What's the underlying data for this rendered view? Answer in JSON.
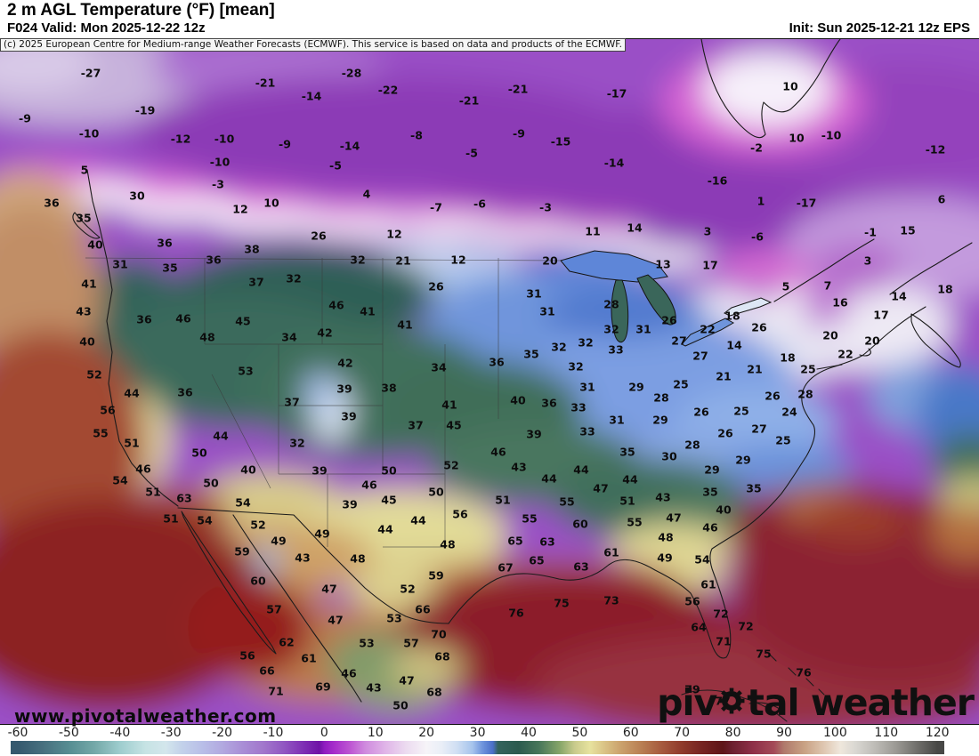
{
  "header": {
    "title": "2 m AGL Temperature (°F) [mean]",
    "valid": "F024 Valid: Mon 2025-12-22 12z",
    "init": "Init: Sun 2025-12-21 12z EPS"
  },
  "copyright": "(c) 2025 European Centre for Medium-range Weather Forecasts (ECMWF). This service is based on data and products of the ECMWF.",
  "watermark": "www.pivotalweather.com",
  "logo": {
    "part1": "piv",
    "part2": "tal weather",
    "gear_icon": "gear"
  },
  "colorbar": {
    "min": -60,
    "max": 120,
    "ticks": [
      -60,
      -50,
      -40,
      -30,
      -20,
      -10,
      0,
      10,
      20,
      30,
      40,
      50,
      60,
      70,
      80,
      90,
      100,
      110,
      120
    ],
    "stops": [
      [
        -60,
        "#35596e"
      ],
      [
        -55,
        "#47707f"
      ],
      [
        -50,
        "#568d92"
      ],
      [
        -45,
        "#74a8a8"
      ],
      [
        -40,
        "#9ecdce"
      ],
      [
        -35,
        "#c6e3e4"
      ],
      [
        -31,
        "#d3e6ec"
      ],
      [
        -28,
        "#c3d2ea"
      ],
      [
        -24,
        "#b9bfe8"
      ],
      [
        -20,
        "#b2a9e0"
      ],
      [
        -16,
        "#a98ed6"
      ],
      [
        -12,
        "#a277cc"
      ],
      [
        -8,
        "#9157c2"
      ],
      [
        -4,
        "#7e2eb4"
      ],
      [
        -1,
        "#6f12a6"
      ],
      [
        0,
        "#8f1cc0"
      ],
      [
        2,
        "#a72ecb"
      ],
      [
        5,
        "#bd55d2"
      ],
      [
        8,
        "#cf8ade"
      ],
      [
        12,
        "#e0b5e8"
      ],
      [
        16,
        "#ecdbf0"
      ],
      [
        20,
        "#f6f4f8"
      ],
      [
        23,
        "#e9eef7"
      ],
      [
        26,
        "#cfdef3"
      ],
      [
        29,
        "#a6c4ec"
      ],
      [
        31,
        "#6d93dc"
      ],
      [
        33,
        "#4a6fc8"
      ],
      [
        34,
        "#33635c"
      ],
      [
        38,
        "#2b5a4e"
      ],
      [
        42,
        "#47765a"
      ],
      [
        46,
        "#84a468"
      ],
      [
        49,
        "#c9cb8c"
      ],
      [
        52,
        "#e7e29e"
      ],
      [
        55,
        "#d9c184"
      ],
      [
        58,
        "#cba26c"
      ],
      [
        62,
        "#b97f53"
      ],
      [
        66,
        "#a65a3e"
      ],
      [
        70,
        "#8f3a2b"
      ],
      [
        74,
        "#752321"
      ],
      [
        78,
        "#5e1518"
      ],
      [
        80,
        "#6d2030"
      ],
      [
        84,
        "#8f3048"
      ],
      [
        88,
        "#a44a58"
      ],
      [
        90,
        "#b07a6c"
      ],
      [
        94,
        "#c9a284"
      ],
      [
        98,
        "#e0c9b4"
      ],
      [
        101,
        "#efe7dc"
      ],
      [
        104,
        "#d9d7d2"
      ],
      [
        108,
        "#bcbab5"
      ],
      [
        112,
        "#9a9893"
      ],
      [
        116,
        "#706f6b"
      ],
      [
        120,
        "#484846"
      ]
    ]
  },
  "map": {
    "temperature_labels": [
      [
        -27,
        102,
        82
      ],
      [
        -21,
        298,
        93
      ],
      [
        -28,
        395,
        82
      ],
      [
        -22,
        436,
        101
      ],
      [
        -21,
        527,
        113
      ],
      [
        -14,
        350,
        108
      ],
      [
        -21,
        582,
        100
      ],
      [
        -17,
        693,
        105
      ],
      [
        10,
        888,
        97
      ],
      [
        -9,
        28,
        133
      ],
      [
        -19,
        163,
        124
      ],
      [
        -10,
        100,
        150
      ],
      [
        -12,
        203,
        156
      ],
      [
        -10,
        252,
        156
      ],
      [
        -9,
        320,
        162
      ],
      [
        -14,
        393,
        164
      ],
      [
        -8,
        468,
        152
      ],
      [
        -9,
        583,
        150
      ],
      [
        -15,
        630,
        159
      ],
      [
        -14,
        690,
        183
      ],
      [
        -5,
        530,
        172
      ],
      [
        -10,
        247,
        182
      ],
      [
        -5,
        377,
        186
      ],
      [
        5,
        95,
        191
      ],
      [
        -3,
        245,
        207
      ],
      [
        30,
        154,
        220
      ],
      [
        4,
        412,
        218
      ],
      [
        10,
        305,
        228
      ],
      [
        12,
        270,
        235
      ],
      [
        -7,
        490,
        233
      ],
      [
        -6,
        539,
        229
      ],
      [
        -3,
        613,
        233
      ],
      [
        10,
        895,
        155
      ],
      [
        -10,
        934,
        152
      ],
      [
        -2,
        850,
        166
      ],
      [
        -12,
        1051,
        168
      ],
      [
        -16,
        806,
        203
      ],
      [
        1,
        855,
        226
      ],
      [
        -17,
        906,
        228
      ],
      [
        6,
        1058,
        224
      ],
      [
        11,
        666,
        260
      ],
      [
        14,
        713,
        256
      ],
      [
        3,
        795,
        260
      ],
      [
        -6,
        851,
        266
      ],
      [
        -1,
        978,
        261
      ],
      [
        15,
        1020,
        259
      ],
      [
        3,
        975,
        293
      ],
      [
        20,
        618,
        293
      ],
      [
        13,
        745,
        297
      ],
      [
        17,
        798,
        298
      ],
      [
        36,
        58,
        228
      ],
      [
        35,
        94,
        245
      ],
      [
        40,
        107,
        275
      ],
      [
        31,
        135,
        297
      ],
      [
        26,
        358,
        265
      ],
      [
        12,
        443,
        263
      ],
      [
        32,
        402,
        292
      ],
      [
        21,
        453,
        293
      ],
      [
        12,
        515,
        292
      ],
      [
        36,
        185,
        273
      ],
      [
        38,
        283,
        280
      ],
      [
        36,
        240,
        292
      ],
      [
        35,
        191,
        301
      ],
      [
        41,
        100,
        319
      ],
      [
        43,
        94,
        350
      ],
      [
        36,
        162,
        359
      ],
      [
        46,
        206,
        358
      ],
      [
        45,
        273,
        361
      ],
      [
        48,
        233,
        379
      ],
      [
        40,
        98,
        384
      ],
      [
        37,
        288,
        317
      ],
      [
        32,
        330,
        313
      ],
      [
        46,
        378,
        343
      ],
      [
        41,
        413,
        350
      ],
      [
        42,
        365,
        374
      ],
      [
        34,
        325,
        379
      ],
      [
        42,
        388,
        408
      ],
      [
        41,
        455,
        365
      ],
      [
        26,
        490,
        322
      ],
      [
        52,
        106,
        421
      ],
      [
        53,
        276,
        417
      ],
      [
        44,
        148,
        442
      ],
      [
        36,
        208,
        441
      ],
      [
        56,
        121,
        461
      ],
      [
        55,
        113,
        487
      ],
      [
        51,
        148,
        498
      ],
      [
        50,
        224,
        509
      ],
      [
        46,
        161,
        527
      ],
      [
        44,
        248,
        490
      ],
      [
        37,
        328,
        452
      ],
      [
        39,
        387,
        437
      ],
      [
        39,
        392,
        468
      ],
      [
        32,
        334,
        498
      ],
      [
        34,
        493,
        413
      ],
      [
        38,
        437,
        436
      ],
      [
        41,
        505,
        455
      ],
      [
        37,
        467,
        478
      ],
      [
        45,
        510,
        478
      ],
      [
        40,
        279,
        528
      ],
      [
        39,
        359,
        529
      ],
      [
        50,
        437,
        529
      ],
      [
        52,
        507,
        523
      ],
      [
        31,
        600,
        330
      ],
      [
        31,
        615,
        350
      ],
      [
        28,
        687,
        342
      ],
      [
        26,
        752,
        360
      ],
      [
        31,
        723,
        370
      ],
      [
        32,
        687,
        370
      ],
      [
        33,
        692,
        393
      ],
      [
        32,
        658,
        385
      ],
      [
        32,
        628,
        390
      ],
      [
        35,
        597,
        398
      ],
      [
        36,
        558,
        407
      ],
      [
        18,
        823,
        355
      ],
      [
        22,
        795,
        370
      ],
      [
        27,
        763,
        383
      ],
      [
        26,
        853,
        368
      ],
      [
        27,
        787,
        400
      ],
      [
        14,
        825,
        388
      ],
      [
        18,
        885,
        402
      ],
      [
        21,
        848,
        415
      ],
      [
        21,
        813,
        423
      ],
      [
        25,
        908,
        415
      ],
      [
        16,
        944,
        340
      ],
      [
        7,
        930,
        321
      ],
      [
        5,
        883,
        322
      ],
      [
        14,
        1010,
        333
      ],
      [
        17,
        990,
        354
      ],
      [
        18,
        1062,
        325
      ],
      [
        20,
        933,
        377
      ],
      [
        20,
        980,
        383
      ],
      [
        22,
        950,
        398
      ],
      [
        32,
        647,
        412
      ],
      [
        31,
        660,
        435
      ],
      [
        29,
        715,
        435
      ],
      [
        25,
        765,
        432
      ],
      [
        28,
        743,
        447
      ],
      [
        26,
        868,
        445
      ],
      [
        28,
        905,
        443
      ],
      [
        24,
        887,
        463
      ],
      [
        25,
        833,
        462
      ],
      [
        26,
        788,
        463
      ],
      [
        29,
        742,
        472
      ],
      [
        31,
        693,
        472
      ],
      [
        33,
        650,
        458
      ],
      [
        33,
        660,
        485
      ],
      [
        40,
        582,
        450
      ],
      [
        36,
        617,
        453
      ],
      [
        39,
        600,
        488
      ],
      [
        46,
        560,
        508
      ],
      [
        43,
        583,
        525
      ],
      [
        35,
        705,
        508
      ],
      [
        30,
        752,
        513
      ],
      [
        28,
        778,
        500
      ],
      [
        26,
        815,
        487
      ],
      [
        27,
        853,
        482
      ],
      [
        25,
        880,
        495
      ],
      [
        29,
        835,
        517
      ],
      [
        29,
        800,
        528
      ],
      [
        54,
        135,
        540
      ],
      [
        51,
        172,
        553
      ],
      [
        63,
        207,
        560
      ],
      [
        50,
        237,
        543
      ],
      [
        54,
        273,
        565
      ],
      [
        51,
        192,
        583
      ],
      [
        54,
        230,
        585
      ],
      [
        52,
        290,
        590
      ],
      [
        49,
        313,
        608
      ],
      [
        49,
        362,
        600
      ],
      [
        46,
        415,
        545
      ],
      [
        39,
        393,
        567
      ],
      [
        45,
        437,
        562
      ],
      [
        44,
        433,
        595
      ],
      [
        44,
        470,
        585
      ],
      [
        48,
        503,
        612
      ],
      [
        50,
        490,
        553
      ],
      [
        56,
        517,
        578
      ],
      [
        59,
        272,
        620
      ],
      [
        43,
        340,
        627
      ],
      [
        48,
        402,
        628
      ],
      [
        59,
        490,
        647
      ],
      [
        60,
        290,
        653
      ],
      [
        47,
        370,
        662
      ],
      [
        52,
        458,
        662
      ],
      [
        57,
        308,
        685
      ],
      [
        47,
        377,
        697
      ],
      [
        53,
        443,
        695
      ],
      [
        66,
        475,
        685
      ],
      [
        62,
        322,
        722
      ],
      [
        53,
        412,
        723
      ],
      [
        57,
        462,
        723
      ],
      [
        70,
        493,
        713
      ],
      [
        56,
        278,
        737
      ],
      [
        61,
        347,
        740
      ],
      [
        68,
        497,
        738
      ],
      [
        66,
        300,
        754
      ],
      [
        46,
        392,
        757
      ],
      [
        47,
        457,
        765
      ],
      [
        71,
        310,
        777
      ],
      [
        69,
        363,
        772
      ],
      [
        43,
        420,
        773
      ],
      [
        68,
        488,
        778
      ],
      [
        50,
        450,
        793
      ],
      [
        44,
        617,
        538
      ],
      [
        44,
        653,
        528
      ],
      [
        44,
        708,
        539
      ],
      [
        47,
        675,
        549
      ],
      [
        51,
        565,
        562
      ],
      [
        55,
        637,
        564
      ],
      [
        43,
        745,
        559
      ],
      [
        35,
        798,
        553
      ],
      [
        35,
        847,
        549
      ],
      [
        40,
        813,
        573
      ],
      [
        55,
        595,
        583
      ],
      [
        60,
        652,
        589
      ],
      [
        51,
        705,
        563
      ],
      [
        55,
        713,
        587
      ],
      [
        47,
        757,
        582
      ],
      [
        46,
        798,
        593
      ],
      [
        65,
        579,
        608
      ],
      [
        63,
        615,
        609
      ],
      [
        48,
        748,
        604
      ],
      [
        65,
        603,
        630
      ],
      [
        67,
        568,
        638
      ],
      [
        61,
        687,
        621
      ],
      [
        63,
        653,
        637
      ],
      [
        49,
        747,
        627
      ],
      [
        54,
        789,
        629
      ],
      [
        61,
        796,
        657
      ],
      [
        75,
        631,
        678
      ],
      [
        73,
        687,
        675
      ],
      [
        76,
        580,
        689
      ],
      [
        56,
        778,
        676
      ],
      [
        72,
        810,
        690
      ],
      [
        72,
        838,
        704
      ],
      [
        64,
        785,
        705
      ],
      [
        71,
        813,
        721
      ],
      [
        75,
        858,
        735
      ],
      [
        76,
        903,
        756
      ],
      [
        79,
        778,
        775
      ],
      [
        77,
        812,
        788
      ]
    ]
  }
}
